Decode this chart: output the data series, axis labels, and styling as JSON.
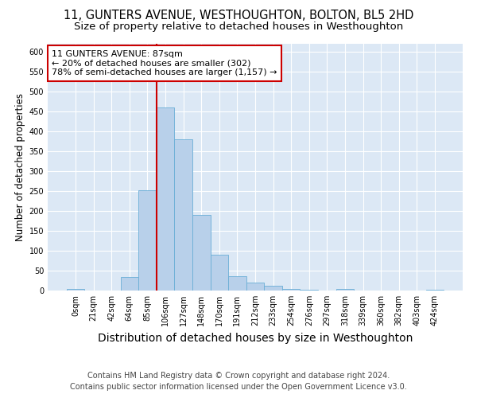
{
  "title": "11, GUNTERS AVENUE, WESTHOUGHTON, BOLTON, BL5 2HD",
  "subtitle": "Size of property relative to detached houses in Westhoughton",
  "xlabel": "Distribution of detached houses by size in Westhoughton",
  "ylabel": "Number of detached properties",
  "footer_line1": "Contains HM Land Registry data © Crown copyright and database right 2024.",
  "footer_line2": "Contains public sector information licensed under the Open Government Licence v3.0.",
  "categories": [
    "0sqm",
    "21sqm",
    "42sqm",
    "64sqm",
    "85sqm",
    "106sqm",
    "127sqm",
    "148sqm",
    "170sqm",
    "191sqm",
    "212sqm",
    "233sqm",
    "254sqm",
    "276sqm",
    "297sqm",
    "318sqm",
    "339sqm",
    "360sqm",
    "382sqm",
    "403sqm",
    "424sqm"
  ],
  "values": [
    5,
    0,
    0,
    35,
    252,
    460,
    380,
    190,
    90,
    37,
    20,
    12,
    5,
    3,
    0,
    5,
    0,
    0,
    0,
    0,
    3
  ],
  "bar_color": "#b8d0ea",
  "bar_edge_color": "#6aaed6",
  "vline_color": "#cc0000",
  "annotation_line1": "11 GUNTERS AVENUE: 87sqm",
  "annotation_line2": "← 20% of detached houses are smaller (302)",
  "annotation_line3": "78% of semi-detached houses are larger (1,157) →",
  "annotation_box_facecolor": "#ffffff",
  "annotation_box_edgecolor": "#cc0000",
  "ylim": [
    0,
    620
  ],
  "yticks": [
    0,
    50,
    100,
    150,
    200,
    250,
    300,
    350,
    400,
    450,
    500,
    550,
    600
  ],
  "plot_background": "#dce8f5",
  "figure_background": "#ffffff",
  "grid_color": "#ffffff",
  "title_fontsize": 10.5,
  "subtitle_fontsize": 9.5,
  "ylabel_fontsize": 8.5,
  "xlabel_fontsize": 10,
  "tick_fontsize": 7,
  "annotation_fontsize": 8,
  "footer_fontsize": 7
}
